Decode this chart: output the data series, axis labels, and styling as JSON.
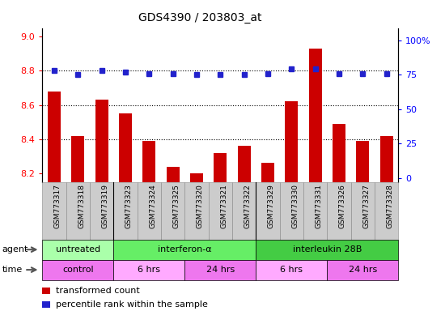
{
  "title": "GDS4390 / 203803_at",
  "samples": [
    "GSM773317",
    "GSM773318",
    "GSM773319",
    "GSM773323",
    "GSM773324",
    "GSM773325",
    "GSM773320",
    "GSM773321",
    "GSM773322",
    "GSM773329",
    "GSM773330",
    "GSM773331",
    "GSM773326",
    "GSM773327",
    "GSM773328"
  ],
  "bar_values": [
    8.68,
    8.42,
    8.63,
    8.55,
    8.39,
    8.24,
    8.2,
    8.32,
    8.36,
    8.26,
    8.62,
    8.93,
    8.49,
    8.39,
    8.42
  ],
  "dot_values": [
    78,
    75,
    78,
    77,
    76,
    76,
    75,
    75,
    75,
    76,
    79,
    79,
    76,
    76,
    76
  ],
  "bar_color": "#CC0000",
  "dot_color": "#2222CC",
  "ylim_left": [
    8.15,
    9.05
  ],
  "ylim_right": [
    -3,
    109
  ],
  "yticks_left": [
    8.2,
    8.4,
    8.6,
    8.8,
    9.0
  ],
  "yticks_right": [
    0,
    25,
    50,
    75,
    100
  ],
  "grid_values": [
    8.4,
    8.6,
    8.8
  ],
  "agent_groups": [
    {
      "label": "untreated",
      "start": 0,
      "end": 3,
      "color": "#AAFFAA"
    },
    {
      "label": "interferon-α",
      "start": 3,
      "end": 9,
      "color": "#66EE66"
    },
    {
      "label": "interleukin 28B",
      "start": 9,
      "end": 15,
      "color": "#44CC44"
    }
  ],
  "time_groups": [
    {
      "label": "control",
      "start": 0,
      "end": 3,
      "color": "#EE77EE"
    },
    {
      "label": "6 hrs",
      "start": 3,
      "end": 6,
      "color": "#FFAAFF"
    },
    {
      "label": "24 hrs",
      "start": 6,
      "end": 9,
      "color": "#EE77EE"
    },
    {
      "label": "6 hrs",
      "start": 9,
      "end": 12,
      "color": "#FFAAFF"
    },
    {
      "label": "24 hrs",
      "start": 12,
      "end": 15,
      "color": "#EE77EE"
    }
  ],
  "legend_items": [
    {
      "color": "#CC0000",
      "label": "transformed count"
    },
    {
      "color": "#2222CC",
      "label": "percentile rank within the sample"
    }
  ],
  "bar_bottom": 8.15,
  "xtick_bg": "#CCCCCC",
  "xtick_border": "#888888"
}
